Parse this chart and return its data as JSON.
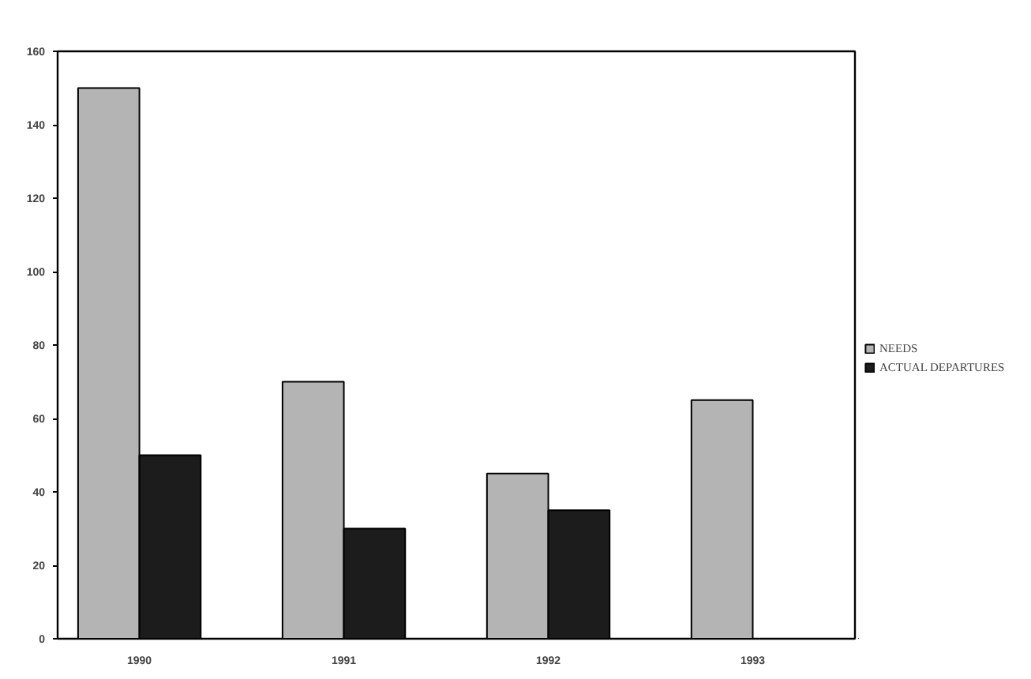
{
  "chart_data": {
    "type": "bar",
    "categories": [
      "1990",
      "1991",
      "1992",
      "1993"
    ],
    "series": [
      {
        "name": "NEEDS",
        "color": "#b4b4b4",
        "values": [
          150,
          70,
          45,
          65
        ]
      },
      {
        "name": "ACTUAL DEPARTURES",
        "color": "#1c1c1c",
        "values": [
          50,
          30,
          35,
          null
        ]
      }
    ],
    "ylim": [
      0,
      160
    ],
    "yticks": [
      0,
      20,
      40,
      60,
      80,
      100,
      120,
      140,
      160
    ],
    "legend": "right"
  }
}
